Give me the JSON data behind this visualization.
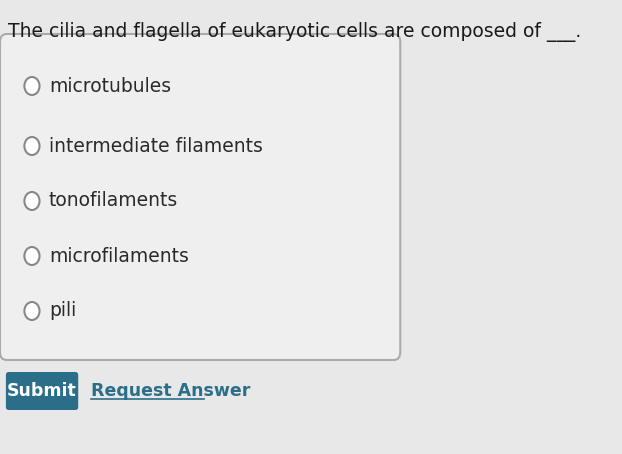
{
  "title": "The cilia and flagella of eukaryotic cells are composed of ___.",
  "options": [
    "microtubules",
    "intermediate filaments",
    "tonofilaments",
    "microfilaments",
    "pili"
  ],
  "bg_color": "#e8e8e8",
  "box_bg_color": "#efefef",
  "box_border_color": "#aaaaaa",
  "title_color": "#1a1a1a",
  "option_color": "#2a2a2a",
  "circle_edge_color": "#888888",
  "submit_bg": "#2a6e8a",
  "submit_text": "Submit",
  "submit_text_color": "#ffffff",
  "request_text": "Request Answer",
  "request_text_color": "#2a6e8a",
  "title_fontsize": 13.5,
  "option_fontsize": 13.5,
  "button_fontsize": 12.5,
  "request_fontsize": 12.5
}
